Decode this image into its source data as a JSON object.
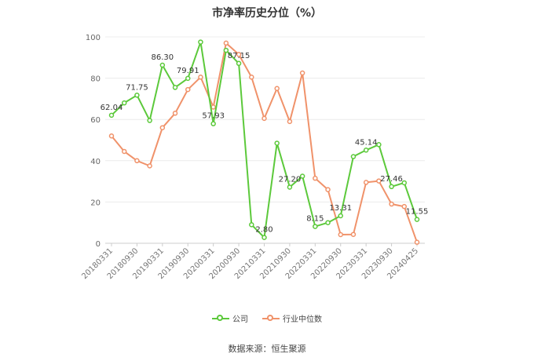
{
  "chart_data": {
    "type": "line",
    "title": "市净率历史分位（%）",
    "ylim": [
      0,
      100
    ],
    "yticks": [
      0,
      20,
      40,
      60,
      80,
      100
    ],
    "grid": true,
    "legend_position": "bottom",
    "x_tick_labels": [
      "20180331",
      "20180930",
      "20190331",
      "20190930",
      "20200331",
      "20200930",
      "20210331",
      "20210930",
      "20220331",
      "20220930",
      "20230331",
      "20230930",
      "20240425"
    ],
    "x_tick_indices": [
      0,
      2,
      4,
      6,
      8,
      10,
      12,
      14,
      16,
      18,
      20,
      22,
      24
    ],
    "point_count": 25,
    "series": [
      {
        "name": "公司",
        "color": "#5cc93b",
        "values": [
          62.04,
          68.0,
          71.75,
          59.5,
          86.3,
          75.5,
          79.91,
          97.5,
          57.93,
          93.5,
          87.15,
          9.0,
          2.8,
          48.5,
          27.2,
          32.5,
          8.15,
          10.0,
          13.31,
          42.0,
          45.14,
          47.8,
          27.46,
          29.3,
          11.55
        ],
        "labels": {
          "0": "62.04",
          "2": "71.75",
          "4": "86.30",
          "6": "79.91",
          "8": "57.93",
          "10": "87.15",
          "12": "2.80",
          "14": "27.20",
          "16": "8.15",
          "18": "13.31",
          "20": "45.14",
          "22": "27.46",
          "24": "11.55"
        }
      },
      {
        "name": "行业中位数",
        "color": "#f0926a",
        "values": [
          52.0,
          44.5,
          40.0,
          37.5,
          56.0,
          63.0,
          74.5,
          80.5,
          66.0,
          97.0,
          91.5,
          80.5,
          60.5,
          75.0,
          59.0,
          82.5,
          31.5,
          26.0,
          4.2,
          4.3,
          29.5,
          30.2,
          19.0,
          17.8,
          0.5
        ]
      }
    ]
  },
  "source": "数据来源：恒生聚源"
}
